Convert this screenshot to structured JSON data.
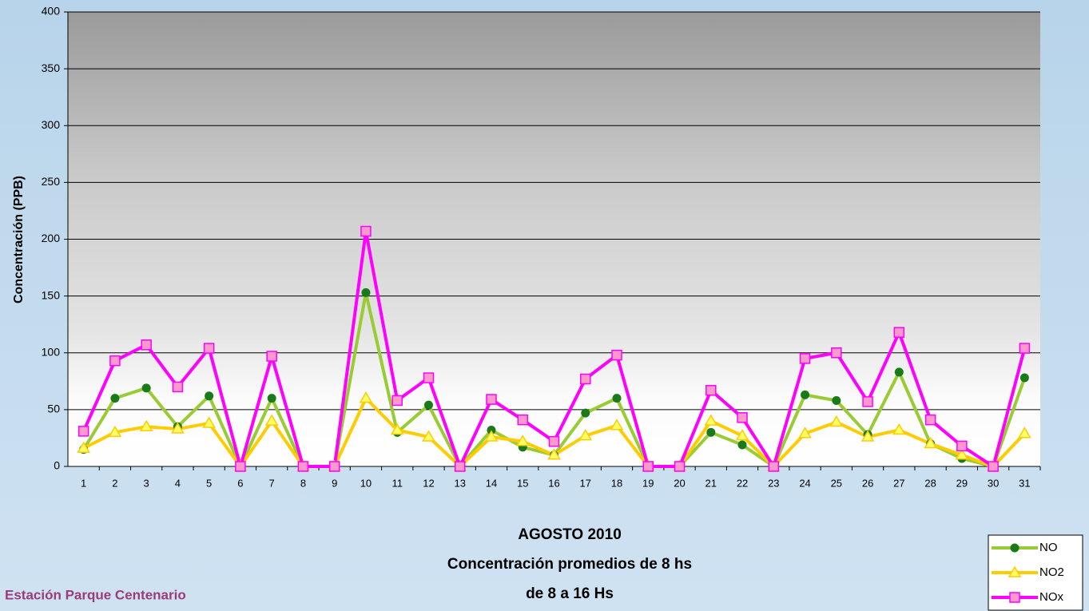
{
  "chart_data": {
    "type": "line",
    "title": "AGOSTO 2010",
    "subtitle": [
      "Concentración promedios de 8 hs",
      "de 8 a 16 Hs"
    ],
    "note": "Estación Parque Centenario",
    "ylabel": "Concentración (PPB)",
    "categories": [
      "1",
      "2",
      "3",
      "4",
      "5",
      "6",
      "7",
      "8",
      "9",
      "10",
      "11",
      "12",
      "13",
      "14",
      "15",
      "16",
      "17",
      "18",
      "19",
      "20",
      "21",
      "22",
      "23",
      "24",
      "25",
      "26",
      "27",
      "28",
      "29",
      "30",
      "31"
    ],
    "series": [
      {
        "name": "NO",
        "color": "#99cc33",
        "marker": "circle",
        "marker_color": "#1a7a1a",
        "values": [
          15,
          60,
          69,
          35,
          62,
          0,
          60,
          0,
          0,
          153,
          30,
          54,
          0,
          32,
          17,
          10,
          47,
          60,
          0,
          0,
          30,
          19,
          0,
          63,
          58,
          28,
          83,
          20,
          7,
          0,
          78
        ]
      },
      {
        "name": "NO2",
        "color": "#ffcc00",
        "marker": "triangle",
        "marker_color": "#ffff66",
        "values": [
          16,
          30,
          35,
          33,
          38,
          0,
          40,
          0,
          0,
          60,
          32,
          26,
          0,
          26,
          22,
          10,
          27,
          36,
          0,
          0,
          40,
          27,
          0,
          29,
          39,
          26,
          32,
          20,
          10,
          0,
          29
        ]
      },
      {
        "name": "NOx",
        "color": "#ff00ff",
        "marker": "square",
        "marker_color": "#ff99cc",
        "values": [
          31,
          93,
          107,
          70,
          104,
          0,
          97,
          0,
          0,
          207,
          58,
          78,
          0,
          59,
          41,
          22,
          77,
          98,
          0,
          0,
          67,
          43,
          0,
          95,
          100,
          57,
          118,
          41,
          18,
          0,
          104
        ]
      }
    ],
    "ylim": [
      0,
      400
    ],
    "yticks": [
      0,
      50,
      100,
      150,
      200,
      250,
      300,
      350,
      400
    ],
    "grid": true,
    "legend": "bottom-right"
  }
}
